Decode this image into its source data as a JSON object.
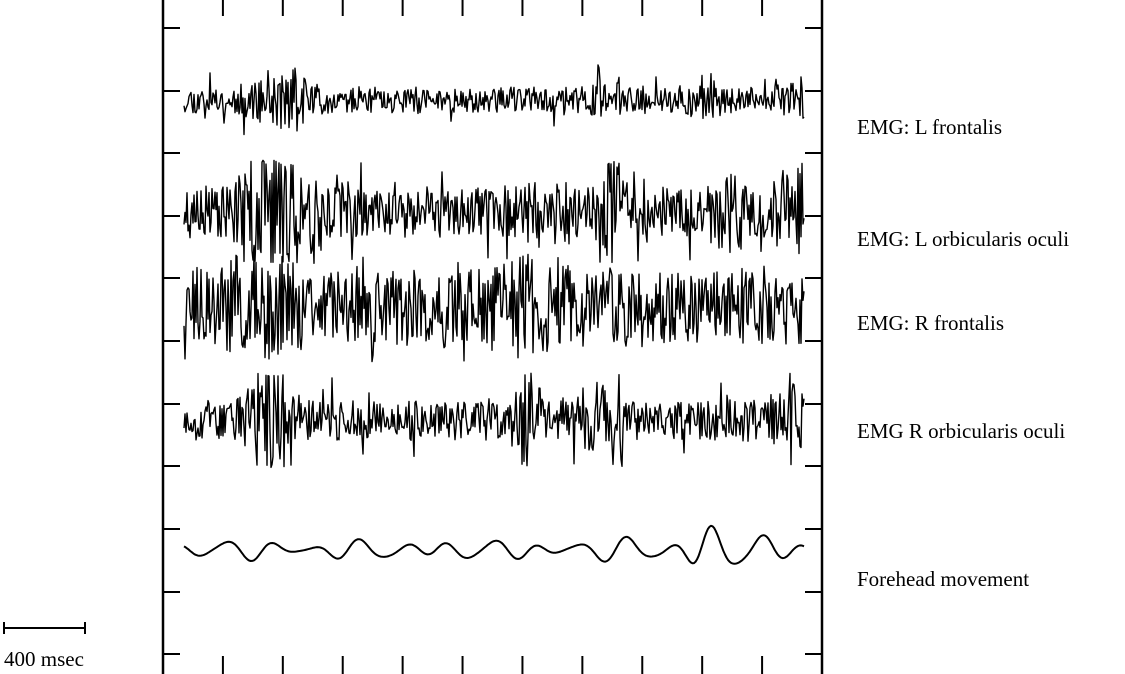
{
  "chart_data": {
    "type": "line",
    "title": "",
    "xlabel": "",
    "ylabel": "",
    "grid": false,
    "legend": "labels-right",
    "series": [
      {
        "name": "EMG: L frontalis",
        "kind": "emg",
        "seed": 11,
        "amplitude": 0.42,
        "bursts": [
          [
            0.14,
            0.05,
            1.8
          ],
          [
            0.18,
            0.03,
            2.2
          ],
          [
            0.68,
            0.02,
            2.0
          ],
          [
            0.84,
            0.02,
            2.1
          ],
          [
            0.98,
            0.03,
            1.6
          ]
        ]
      },
      {
        "name": "EMG: L orbicularis oculi",
        "kind": "emg",
        "seed": 23,
        "amplitude": 0.55,
        "bursts": [
          [
            0.13,
            0.04,
            2.2
          ],
          [
            0.18,
            0.06,
            2.0
          ],
          [
            0.58,
            0.04,
            1.6
          ],
          [
            0.69,
            0.02,
            2.3
          ],
          [
            0.88,
            0.03,
            1.8
          ],
          [
            0.98,
            0.03,
            2.1
          ]
        ]
      },
      {
        "name": "EMG: R frontalis",
        "kind": "emg",
        "seed": 37,
        "amplitude": 0.85,
        "bursts": [
          [
            0.12,
            0.06,
            1.5
          ],
          [
            0.55,
            0.05,
            1.4
          ]
        ]
      },
      {
        "name": "EMG R orbicularis oculi",
        "kind": "emg",
        "seed": 53,
        "amplitude": 0.5,
        "bursts": [
          [
            0.135,
            0.03,
            3.0
          ],
          [
            0.55,
            0.025,
            2.6
          ],
          [
            0.67,
            0.03,
            2.0
          ],
          [
            0.98,
            0.03,
            1.8
          ]
        ]
      },
      {
        "name": "Forehead movement",
        "kind": "wave",
        "seed": 71,
        "amplitude": 0.3,
        "bursts": [
          [
            0.75,
            0.05,
            1.6
          ],
          [
            0.84,
            0.04,
            2.6
          ],
          [
            0.93,
            0.04,
            1.8
          ]
        ]
      }
    ],
    "scale_bar": {
      "label": "400 msec",
      "value": 400,
      "unit": "msec"
    },
    "ticks": {
      "x_count": 11,
      "y_count": 11
    }
  }
}
